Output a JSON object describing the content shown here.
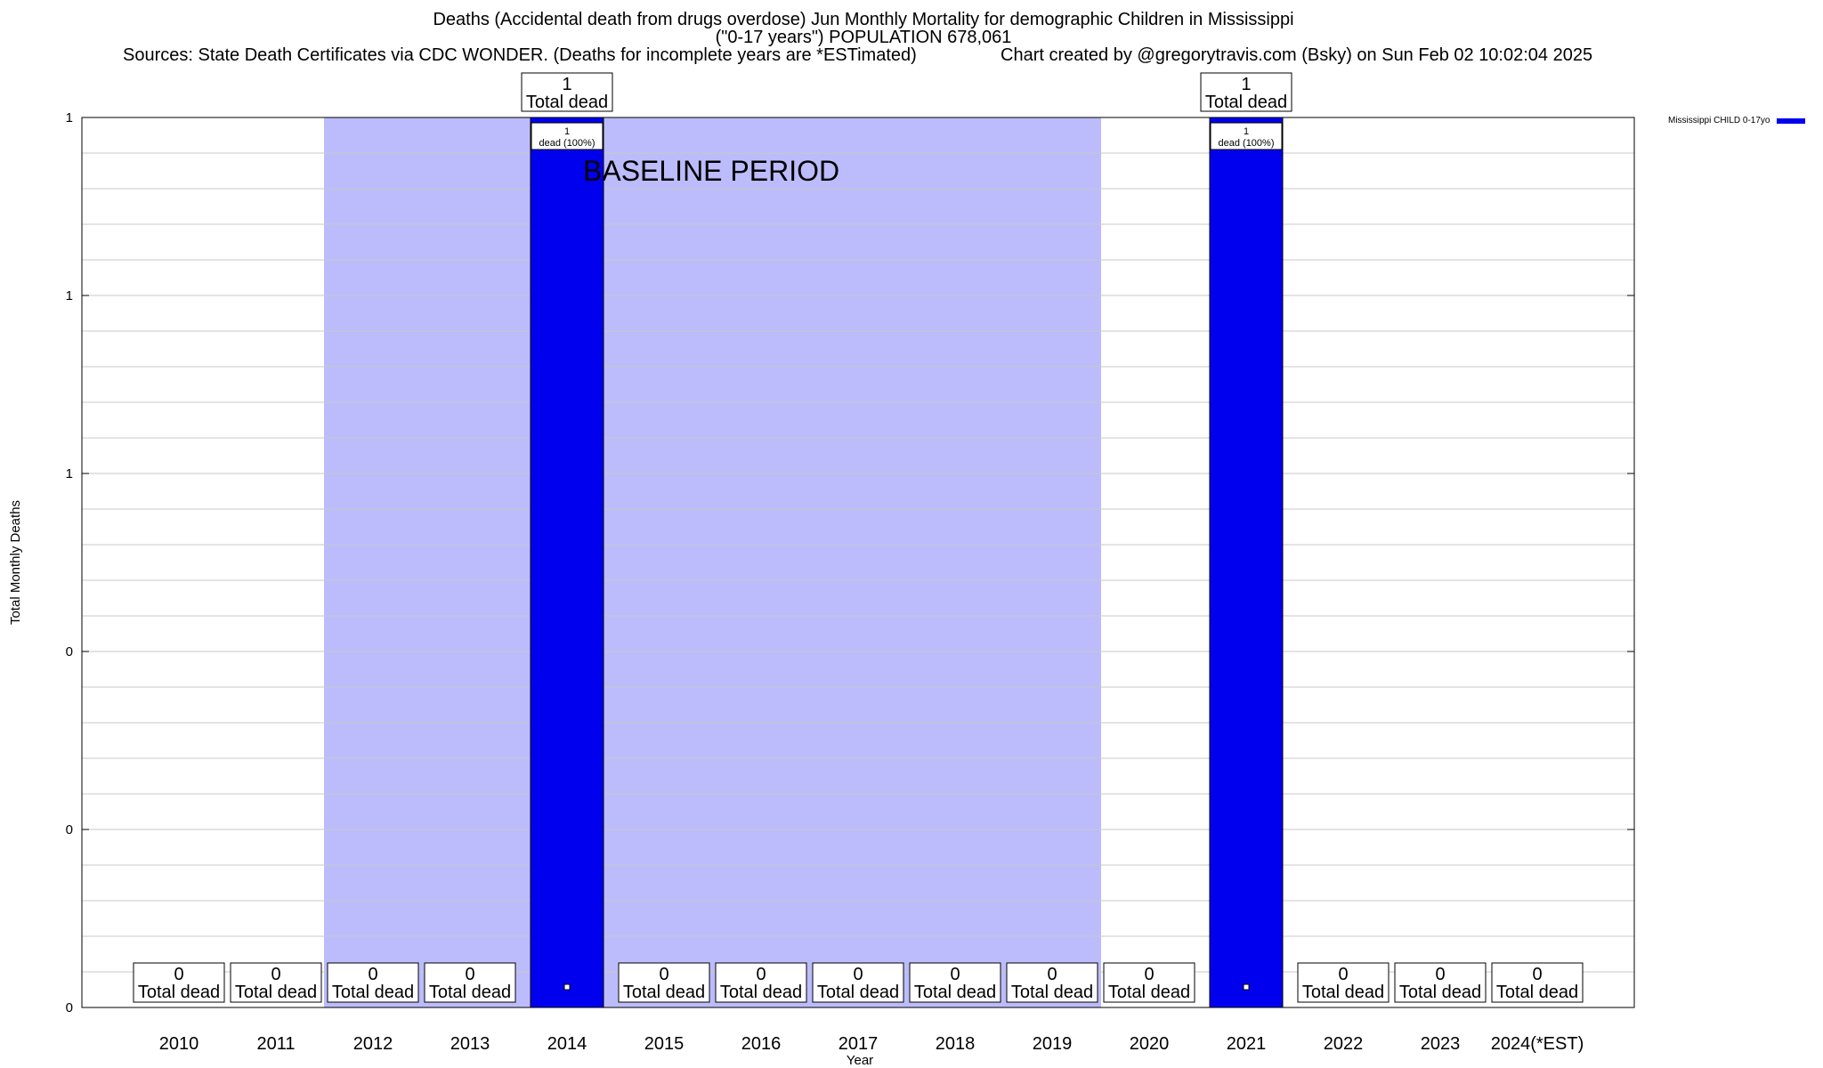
{
  "chart_data": {
    "type": "bar",
    "title": "Deaths (Accidental death from drugs overdose) Jun Monthly Mortality for demographic Children in Mississippi",
    "title_line2": "(\"0-17 years\") POPULATION 678,061",
    "sources": "Sources: State Death Certificates via CDC WONDER. (Deaths for incomplete years are *ESTimated)",
    "credit": "Chart created by @gregorytravis.com (Bsky) on Sun Feb 02 10:02:04 2025",
    "xlabel": "Year",
    "ylabel": "Total Monthly Deaths",
    "ylim": [
      0,
      1
    ],
    "y_tick_labels": [
      "0",
      "0",
      "0",
      "1",
      "1",
      "1"
    ],
    "categories": [
      "2010",
      "2011",
      "2012",
      "2013",
      "2014",
      "2015",
      "2016",
      "2017",
      "2018",
      "2019",
      "2020",
      "2021",
      "2022",
      "2023",
      "2024(*EST)"
    ],
    "series": [
      {
        "name": "Mississippi CHILD 0-17yo",
        "color": "#0000ee",
        "values": [
          0,
          0,
          0,
          0,
          1,
          0,
          0,
          0,
          0,
          0,
          0,
          1,
          0,
          0,
          0
        ]
      }
    ],
    "total_label": "Total dead",
    "bar_label_suffix": "dead (100%)",
    "baseline": {
      "label": "BASELINE PERIOD",
      "from": "2012",
      "to": "2019",
      "color": "#bcbcfc"
    },
    "grid": true,
    "legend_position": "top-right"
  }
}
